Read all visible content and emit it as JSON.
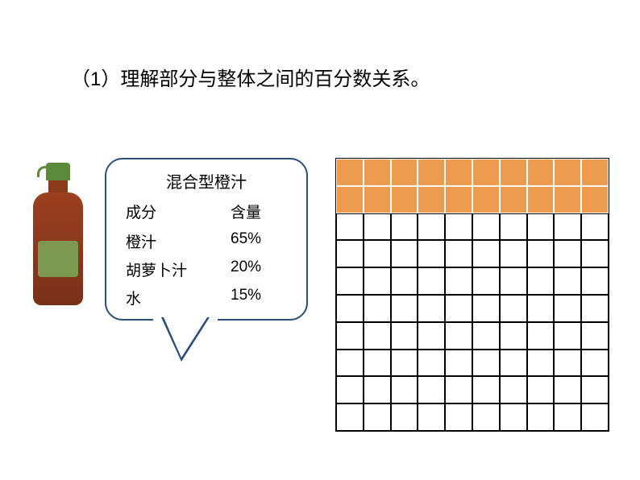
{
  "title": "（1）理解部分与整体之间的百分数关系。",
  "callout": {
    "title": "混合型橙汁",
    "header_col1": "成分",
    "header_col2": "含量",
    "rows": [
      {
        "ingredient": "橙汁",
        "percentage": "65%"
      },
      {
        "ingredient": "胡萝卜汁",
        "percentage": "20%"
      },
      {
        "ingredient": "水",
        "percentage": "15%"
      }
    ]
  },
  "grid": {
    "rows": 10,
    "cols": 10,
    "filled_rows": 2,
    "filled_color": "#ed9b4e",
    "empty_color": "#ffffff",
    "border_color": "#000000",
    "filled_border_color": "#ffffff"
  },
  "colors": {
    "callout_border": "#2a4d7a",
    "text": "#000000",
    "background": "#ffffff"
  }
}
